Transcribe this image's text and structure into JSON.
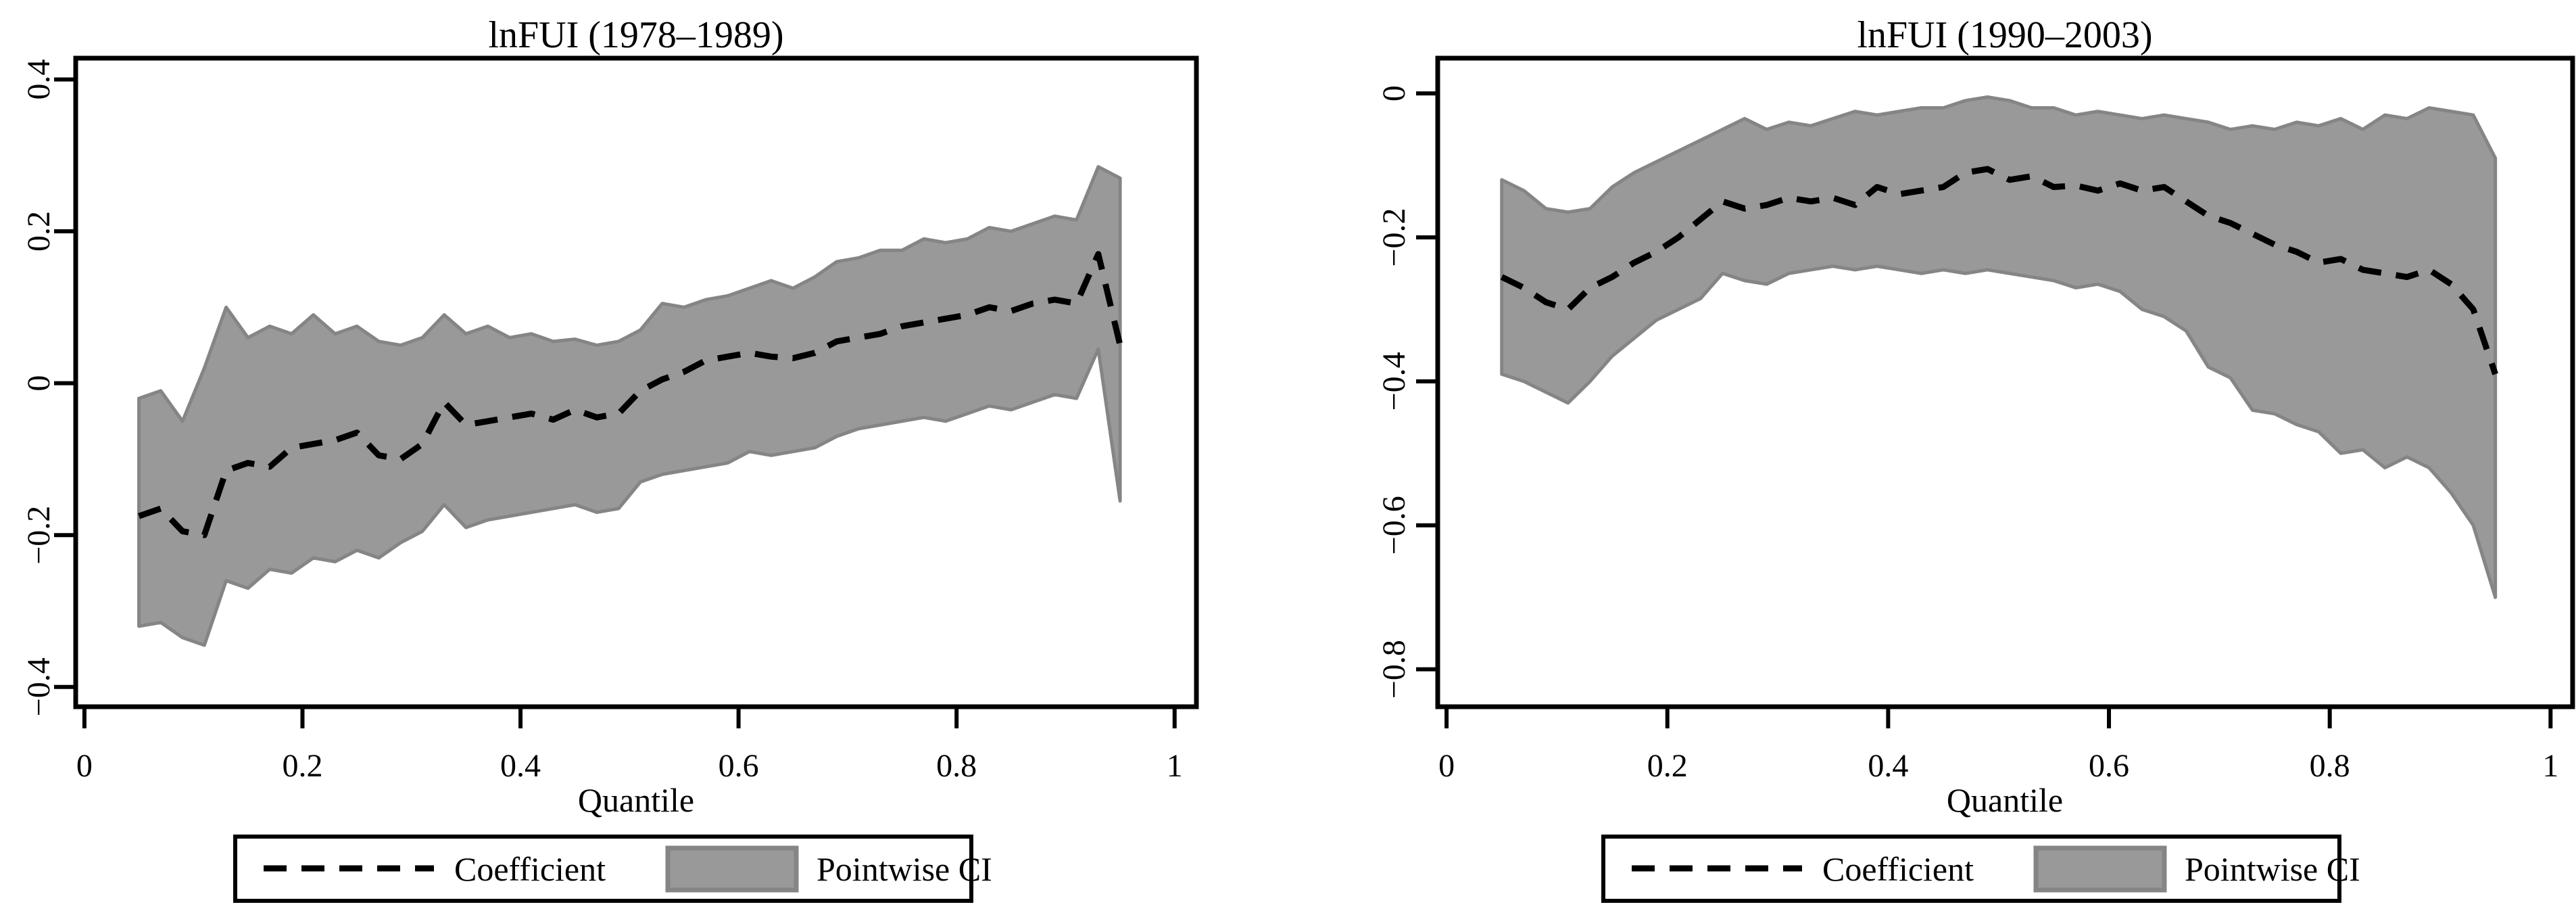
{
  "figure": {
    "background": "#ffffff"
  },
  "colors": {
    "band_fill": "#999999",
    "band_stroke": "#858585",
    "coefficient_line": "#000000",
    "frame": "#000000"
  },
  "chart_data": [
    {
      "type": "line",
      "title": "lnFUI (1978–1989)",
      "xlabel": "Quantile",
      "ylabel": "",
      "legend": [
        "Coefficient",
        "Pointwise CI"
      ],
      "legend_position": "bottom",
      "grid": false,
      "xlim": [
        -0.008,
        1.02
      ],
      "ylim": [
        -0.426,
        0.428
      ],
      "xticks": [
        0,
        0.2,
        0.4,
        0.6,
        0.8,
        1
      ],
      "xtick_labels": [
        "0",
        "0.2",
        "0.4",
        "0.6",
        "0.8",
        "1"
      ],
      "yticks": [
        0.4,
        0.2,
        0,
        -0.2,
        -0.4
      ],
      "ytick_labels": [
        "0.4",
        "0.2",
        "0",
        "−0.2",
        "−0.4"
      ],
      "x": [
        0.05,
        0.07,
        0.09,
        0.11,
        0.13,
        0.15,
        0.17,
        0.19,
        0.21,
        0.23,
        0.25,
        0.27,
        0.29,
        0.31,
        0.33,
        0.35,
        0.37,
        0.39,
        0.41,
        0.43,
        0.45,
        0.47,
        0.49,
        0.51,
        0.53,
        0.55,
        0.57,
        0.59,
        0.61,
        0.63,
        0.65,
        0.67,
        0.69,
        0.71,
        0.73,
        0.75,
        0.77,
        0.79,
        0.81,
        0.83,
        0.85,
        0.87,
        0.89,
        0.91,
        0.93,
        0.95
      ],
      "series": [
        {
          "name": "Coefficient",
          "role": "coefficient",
          "line_style": "dashed",
          "color": "#000000",
          "values": [
            -0.175,
            -0.165,
            -0.195,
            -0.2,
            -0.115,
            -0.105,
            -0.11,
            -0.085,
            -0.08,
            -0.075,
            -0.065,
            -0.095,
            -0.1,
            -0.08,
            -0.025,
            -0.055,
            -0.05,
            -0.045,
            -0.04,
            -0.048,
            -0.035,
            -0.045,
            -0.04,
            -0.01,
            0.005,
            0.015,
            0.03,
            0.035,
            0.04,
            0.035,
            0.033,
            0.04,
            0.055,
            0.06,
            0.065,
            0.075,
            0.08,
            0.085,
            0.09,
            0.1,
            0.095,
            0.105,
            0.11,
            0.105,
            0.17,
            0.05
          ]
        },
        {
          "name": "Pointwise CI upper",
          "role": "upper",
          "values": [
            -0.02,
            -0.01,
            -0.05,
            0.02,
            0.1,
            0.06,
            0.075,
            0.065,
            0.09,
            0.065,
            0.075,
            0.055,
            0.05,
            0.06,
            0.09,
            0.065,
            0.075,
            0.06,
            0.065,
            0.055,
            0.058,
            0.05,
            0.055,
            0.07,
            0.105,
            0.1,
            0.11,
            0.115,
            0.125,
            0.135,
            0.125,
            0.14,
            0.16,
            0.165,
            0.175,
            0.175,
            0.19,
            0.185,
            0.19,
            0.205,
            0.2,
            0.21,
            0.22,
            0.215,
            0.285,
            0.27
          ]
        },
        {
          "name": "Pointwise CI lower",
          "role": "lower",
          "values": [
            -0.32,
            -0.315,
            -0.335,
            -0.345,
            -0.26,
            -0.27,
            -0.245,
            -0.25,
            -0.23,
            -0.235,
            -0.22,
            -0.23,
            -0.21,
            -0.195,
            -0.16,
            -0.19,
            -0.18,
            -0.175,
            -0.17,
            -0.165,
            -0.16,
            -0.17,
            -0.165,
            -0.13,
            -0.12,
            -0.115,
            -0.11,
            -0.105,
            -0.09,
            -0.095,
            -0.09,
            -0.085,
            -0.07,
            -0.06,
            -0.055,
            -0.05,
            -0.045,
            -0.05,
            -0.04,
            -0.03,
            -0.035,
            -0.025,
            -0.015,
            -0.02,
            0.045,
            -0.155
          ]
        }
      ]
    },
    {
      "type": "line",
      "title": "lnFUI (1990–2003)",
      "xlabel": "Quantile",
      "ylabel": "",
      "legend": [
        "Coefficient",
        "Pointwise CI"
      ],
      "legend_position": "bottom",
      "grid": false,
      "xlim": [
        -0.008,
        1.02
      ],
      "ylim": [
        -0.852,
        0.049
      ],
      "xticks": [
        0,
        0.2,
        0.4,
        0.6,
        0.8,
        1
      ],
      "xtick_labels": [
        "0",
        "0.2",
        "0.4",
        "0.6",
        "0.8",
        "1"
      ],
      "yticks": [
        0,
        -0.2,
        -0.4,
        -0.6,
        -0.8
      ],
      "ytick_labels": [
        "0",
        "−0.2",
        "−0.4",
        "−0.6",
        "−0.8"
      ],
      "x": [
        0.05,
        0.07,
        0.09,
        0.11,
        0.13,
        0.15,
        0.17,
        0.19,
        0.21,
        0.23,
        0.25,
        0.27,
        0.29,
        0.31,
        0.33,
        0.35,
        0.37,
        0.39,
        0.41,
        0.43,
        0.45,
        0.47,
        0.49,
        0.51,
        0.53,
        0.55,
        0.57,
        0.59,
        0.61,
        0.63,
        0.65,
        0.67,
        0.69,
        0.71,
        0.73,
        0.75,
        0.77,
        0.79,
        0.81,
        0.83,
        0.85,
        0.87,
        0.89,
        0.91,
        0.93,
        0.95
      ],
      "series": [
        {
          "name": "Coefficient",
          "role": "coefficient",
          "line_style": "dashed",
          "color": "#000000",
          "values": [
            -0.255,
            -0.27,
            -0.29,
            -0.3,
            -0.27,
            -0.255,
            -0.235,
            -0.22,
            -0.2,
            -0.175,
            -0.15,
            -0.16,
            -0.155,
            -0.145,
            -0.15,
            -0.145,
            -0.155,
            -0.13,
            -0.14,
            -0.135,
            -0.13,
            -0.11,
            -0.105,
            -0.12,
            -0.115,
            -0.13,
            -0.128,
            -0.135,
            -0.125,
            -0.135,
            -0.13,
            -0.15,
            -0.17,
            -0.18,
            -0.195,
            -0.21,
            -0.22,
            -0.235,
            -0.23,
            -0.245,
            -0.25,
            -0.255,
            -0.245,
            -0.265,
            -0.3,
            -0.39
          ]
        },
        {
          "name": "Pointwise CI upper",
          "role": "upper",
          "values": [
            -0.12,
            -0.135,
            -0.16,
            -0.165,
            -0.16,
            -0.13,
            -0.11,
            -0.095,
            -0.08,
            -0.065,
            -0.05,
            -0.035,
            -0.05,
            -0.04,
            -0.045,
            -0.035,
            -0.025,
            -0.03,
            -0.025,
            -0.02,
            -0.02,
            -0.01,
            -0.005,
            -0.01,
            -0.02,
            -0.02,
            -0.03,
            -0.025,
            -0.03,
            -0.035,
            -0.03,
            -0.035,
            -0.04,
            -0.05,
            -0.045,
            -0.05,
            -0.04,
            -0.045,
            -0.035,
            -0.05,
            -0.03,
            -0.035,
            -0.02,
            -0.025,
            -0.03,
            -0.09
          ]
        },
        {
          "name": "Pointwise CI lower",
          "role": "lower",
          "values": [
            -0.39,
            -0.4,
            -0.415,
            -0.43,
            -0.4,
            -0.365,
            -0.34,
            -0.315,
            -0.3,
            -0.285,
            -0.25,
            -0.26,
            -0.265,
            -0.25,
            -0.245,
            -0.24,
            -0.245,
            -0.24,
            -0.245,
            -0.25,
            -0.245,
            -0.25,
            -0.245,
            -0.25,
            -0.255,
            -0.26,
            -0.27,
            -0.265,
            -0.275,
            -0.3,
            -0.31,
            -0.33,
            -0.38,
            -0.395,
            -0.44,
            -0.445,
            -0.46,
            -0.47,
            -0.5,
            -0.495,
            -0.52,
            -0.505,
            -0.52,
            -0.555,
            -0.6,
            -0.7
          ]
        }
      ]
    }
  ]
}
